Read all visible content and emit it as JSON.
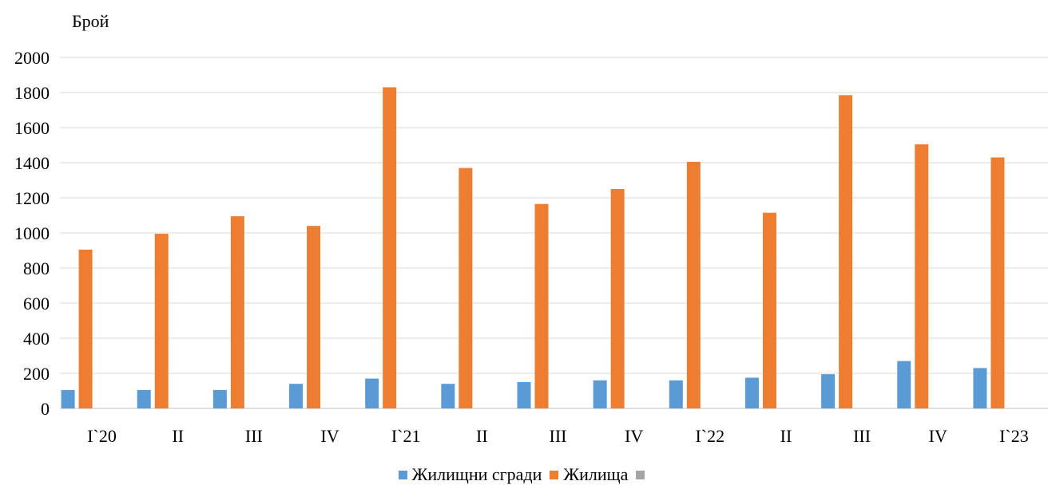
{
  "chart_data": {
    "type": "bar",
    "title": "",
    "xlabel": "",
    "ylabel": "Брой",
    "ylim": [
      0,
      2000
    ],
    "yticks": [
      0,
      200,
      400,
      600,
      800,
      1000,
      1200,
      1400,
      1600,
      1800,
      2000
    ],
    "grid": true,
    "legend_position": "bottom",
    "categories": [
      "I`20",
      "II",
      "III",
      "IV",
      "I`21",
      "II",
      "III",
      "IV",
      "I`22",
      "II",
      "III",
      "IV",
      "I`23"
    ],
    "series": [
      {
        "name": "Жилищни сгради",
        "color": "#5B9BD5",
        "values": [
          105,
          105,
          105,
          140,
          170,
          140,
          150,
          160,
          160,
          175,
          195,
          270,
          230
        ]
      },
      {
        "name": "Жилища",
        "color": "#ED7D31",
        "values": [
          905,
          995,
          1095,
          1040,
          1830,
          1370,
          1165,
          1250,
          1405,
          1115,
          1785,
          1505,
          1430
        ]
      },
      {
        "name": "",
        "color": "#A5A5A5",
        "values": [
          0,
          0,
          0,
          0,
          0,
          0,
          0,
          0,
          0,
          0,
          0,
          0,
          0
        ]
      }
    ]
  }
}
